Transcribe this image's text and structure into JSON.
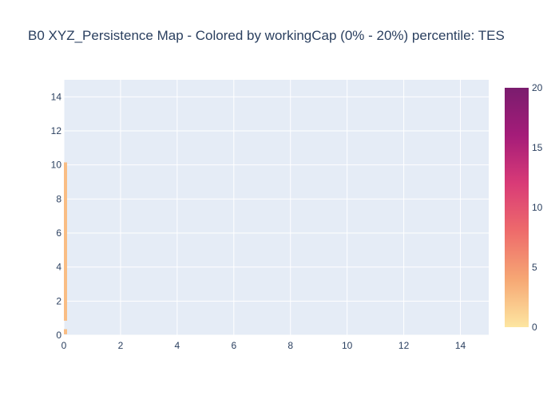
{
  "chart_data": {
    "type": "bar",
    "title": "B0 XYZ_Persistence Map - Colored by workingCap (0% - 20%) percentile: TES",
    "xlabel": "",
    "ylabel": "",
    "xlim": [
      0,
      15
    ],
    "ylim": [
      0,
      15
    ],
    "x_ticks": [
      "0",
      "2",
      "4",
      "6",
      "8",
      "10",
      "12",
      "14"
    ],
    "y_ticks": [
      "0",
      "2",
      "4",
      "6",
      "8",
      "10",
      "12",
      "14"
    ],
    "grid": true,
    "bars": [
      {
        "x": 0,
        "y_start": 0.05,
        "y_end": 0.35,
        "color_value": 2
      },
      {
        "x": 0,
        "y_start": 0.85,
        "y_end": 10.15,
        "color_value": 2
      }
    ],
    "colorbar": {
      "range": [
        0,
        20
      ],
      "tick_labels": [
        "0",
        "5",
        "10",
        "15",
        "20"
      ],
      "colorscale": [
        "#fde6a1",
        "#f6a774",
        "#ee6b6b",
        "#d93b77",
        "#a51c79",
        "#7a1c6e"
      ]
    },
    "colors": {
      "plot_bg": "#e5ecf6",
      "grid": "#ffffff",
      "bar": "#f9bd84"
    }
  }
}
